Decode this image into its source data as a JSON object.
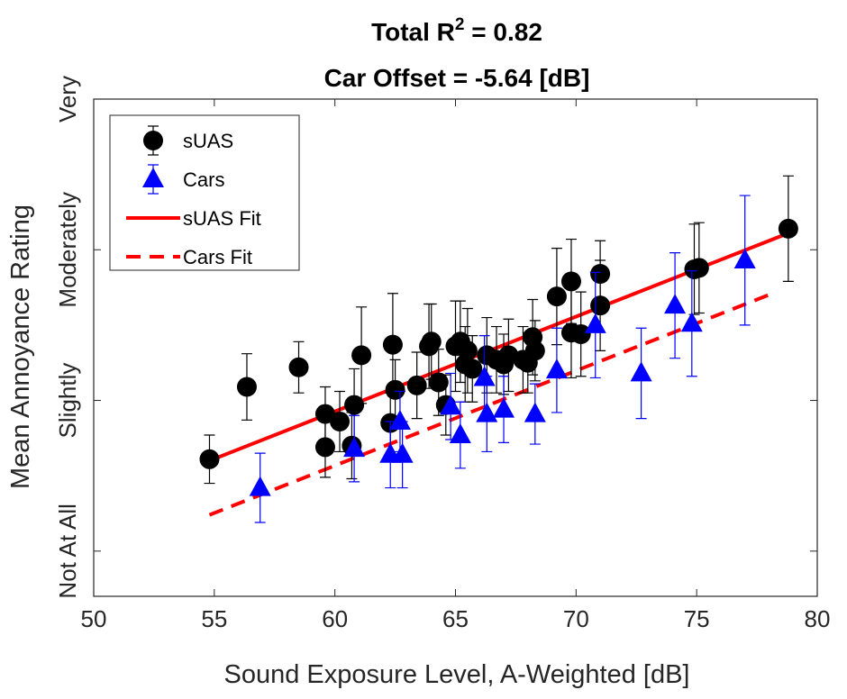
{
  "chart_data": {
    "type": "scatter",
    "title": "Total R",
    "title_superscript": "2",
    "title_suffix": " = 0.82",
    "subtitle": "Car Offset = -5.64 [dB]",
    "x_label": "Sound Exposure Level, A-Weighted [dB]",
    "y_label": "Mean Annoyance Rating",
    "xlim": [
      50,
      80
    ],
    "xticks": [
      50,
      55,
      60,
      65,
      70,
      75,
      80
    ],
    "ylim": [
      0.7,
      4
    ],
    "yticks": [
      {
        "value": 1,
        "label": "Not At All"
      },
      {
        "value": 2,
        "label": "Slightly"
      },
      {
        "value": 3,
        "label": "Moderately"
      },
      {
        "value": 4,
        "label": "Very"
      }
    ],
    "legend": "upper-left",
    "series": [
      {
        "name": "sUAS",
        "color": "#000000",
        "marker": "circle",
        "x": [
          54.8,
          56.35,
          58.5,
          59.6,
          59.6,
          60.2,
          60.7,
          60.8,
          61.1,
          62.3,
          62.5,
          62.4,
          63.4,
          63.9,
          64.0,
          64.3,
          64.6,
          65.0,
          65.2,
          65.4,
          65.5,
          65.7,
          66.3,
          66.7,
          67.0,
          67.2,
          67.8,
          68.0,
          68.2,
          68.3,
          69.2,
          69.8,
          69.8,
          70.2,
          71.0,
          71.0,
          74.9,
          75.1,
          78.8
        ],
        "values": [
          1.61,
          2.09,
          2.22,
          1.91,
          1.69,
          1.86,
          1.7,
          1.97,
          2.3,
          1.85,
          2.07,
          2.37,
          2.1,
          2.36,
          2.39,
          2.12,
          1.97,
          2.36,
          2.39,
          2.24,
          2.33,
          2.21,
          2.3,
          2.27,
          2.24,
          2.3,
          2.27,
          2.25,
          2.42,
          2.33,
          2.69,
          2.79,
          2.45,
          2.44,
          2.63,
          2.84,
          2.87,
          2.88,
          3.14
        ],
        "errors": [
          0.16,
          0.22,
          0.17,
          0.18,
          0.2,
          0.2,
          0.22,
          0.24,
          0.32,
          0.2,
          0.2,
          0.34,
          0.22,
          0.28,
          0.25,
          0.22,
          0.2,
          0.3,
          0.27,
          0.25,
          0.28,
          0.22,
          0.25,
          0.22,
          0.2,
          0.24,
          0.22,
          0.2,
          0.25,
          0.2,
          0.32,
          0.28,
          0.3,
          0.28,
          0.3,
          0.22,
          0.3,
          0.3,
          0.35
        ]
      },
      {
        "name": "Cars",
        "color": "#0000ff",
        "marker": "triangle",
        "x": [
          56.9,
          60.8,
          62.3,
          62.8,
          62.7,
          64.8,
          65.2,
          66.2,
          66.3,
          67.0,
          68.3,
          69.2,
          70.8,
          72.7,
          74.1,
          74.8,
          77.0
        ],
        "values": [
          1.42,
          1.68,
          1.64,
          1.64,
          1.86,
          1.96,
          1.77,
          2.15,
          1.91,
          1.94,
          1.91,
          2.2,
          2.5,
          2.18,
          2.63,
          2.51,
          2.93
        ],
        "errors": [
          0.23,
          0.22,
          0.22,
          0.22,
          0.2,
          0.22,
          0.22,
          0.28,
          0.25,
          0.22,
          0.2,
          0.28,
          0.35,
          0.3,
          0.35,
          0.35,
          0.43
        ]
      },
      {
        "name": "sUAS Fit",
        "color": "#ff0000",
        "line": "solid",
        "x": [
          54.8,
          78.8
        ],
        "values": [
          1.6,
          3.11
        ]
      },
      {
        "name": "Cars Fit",
        "color": "#ff0000",
        "line": "dashed",
        "x": [
          54.8,
          78.3
        ],
        "values": [
          1.24,
          2.72
        ]
      }
    ]
  }
}
